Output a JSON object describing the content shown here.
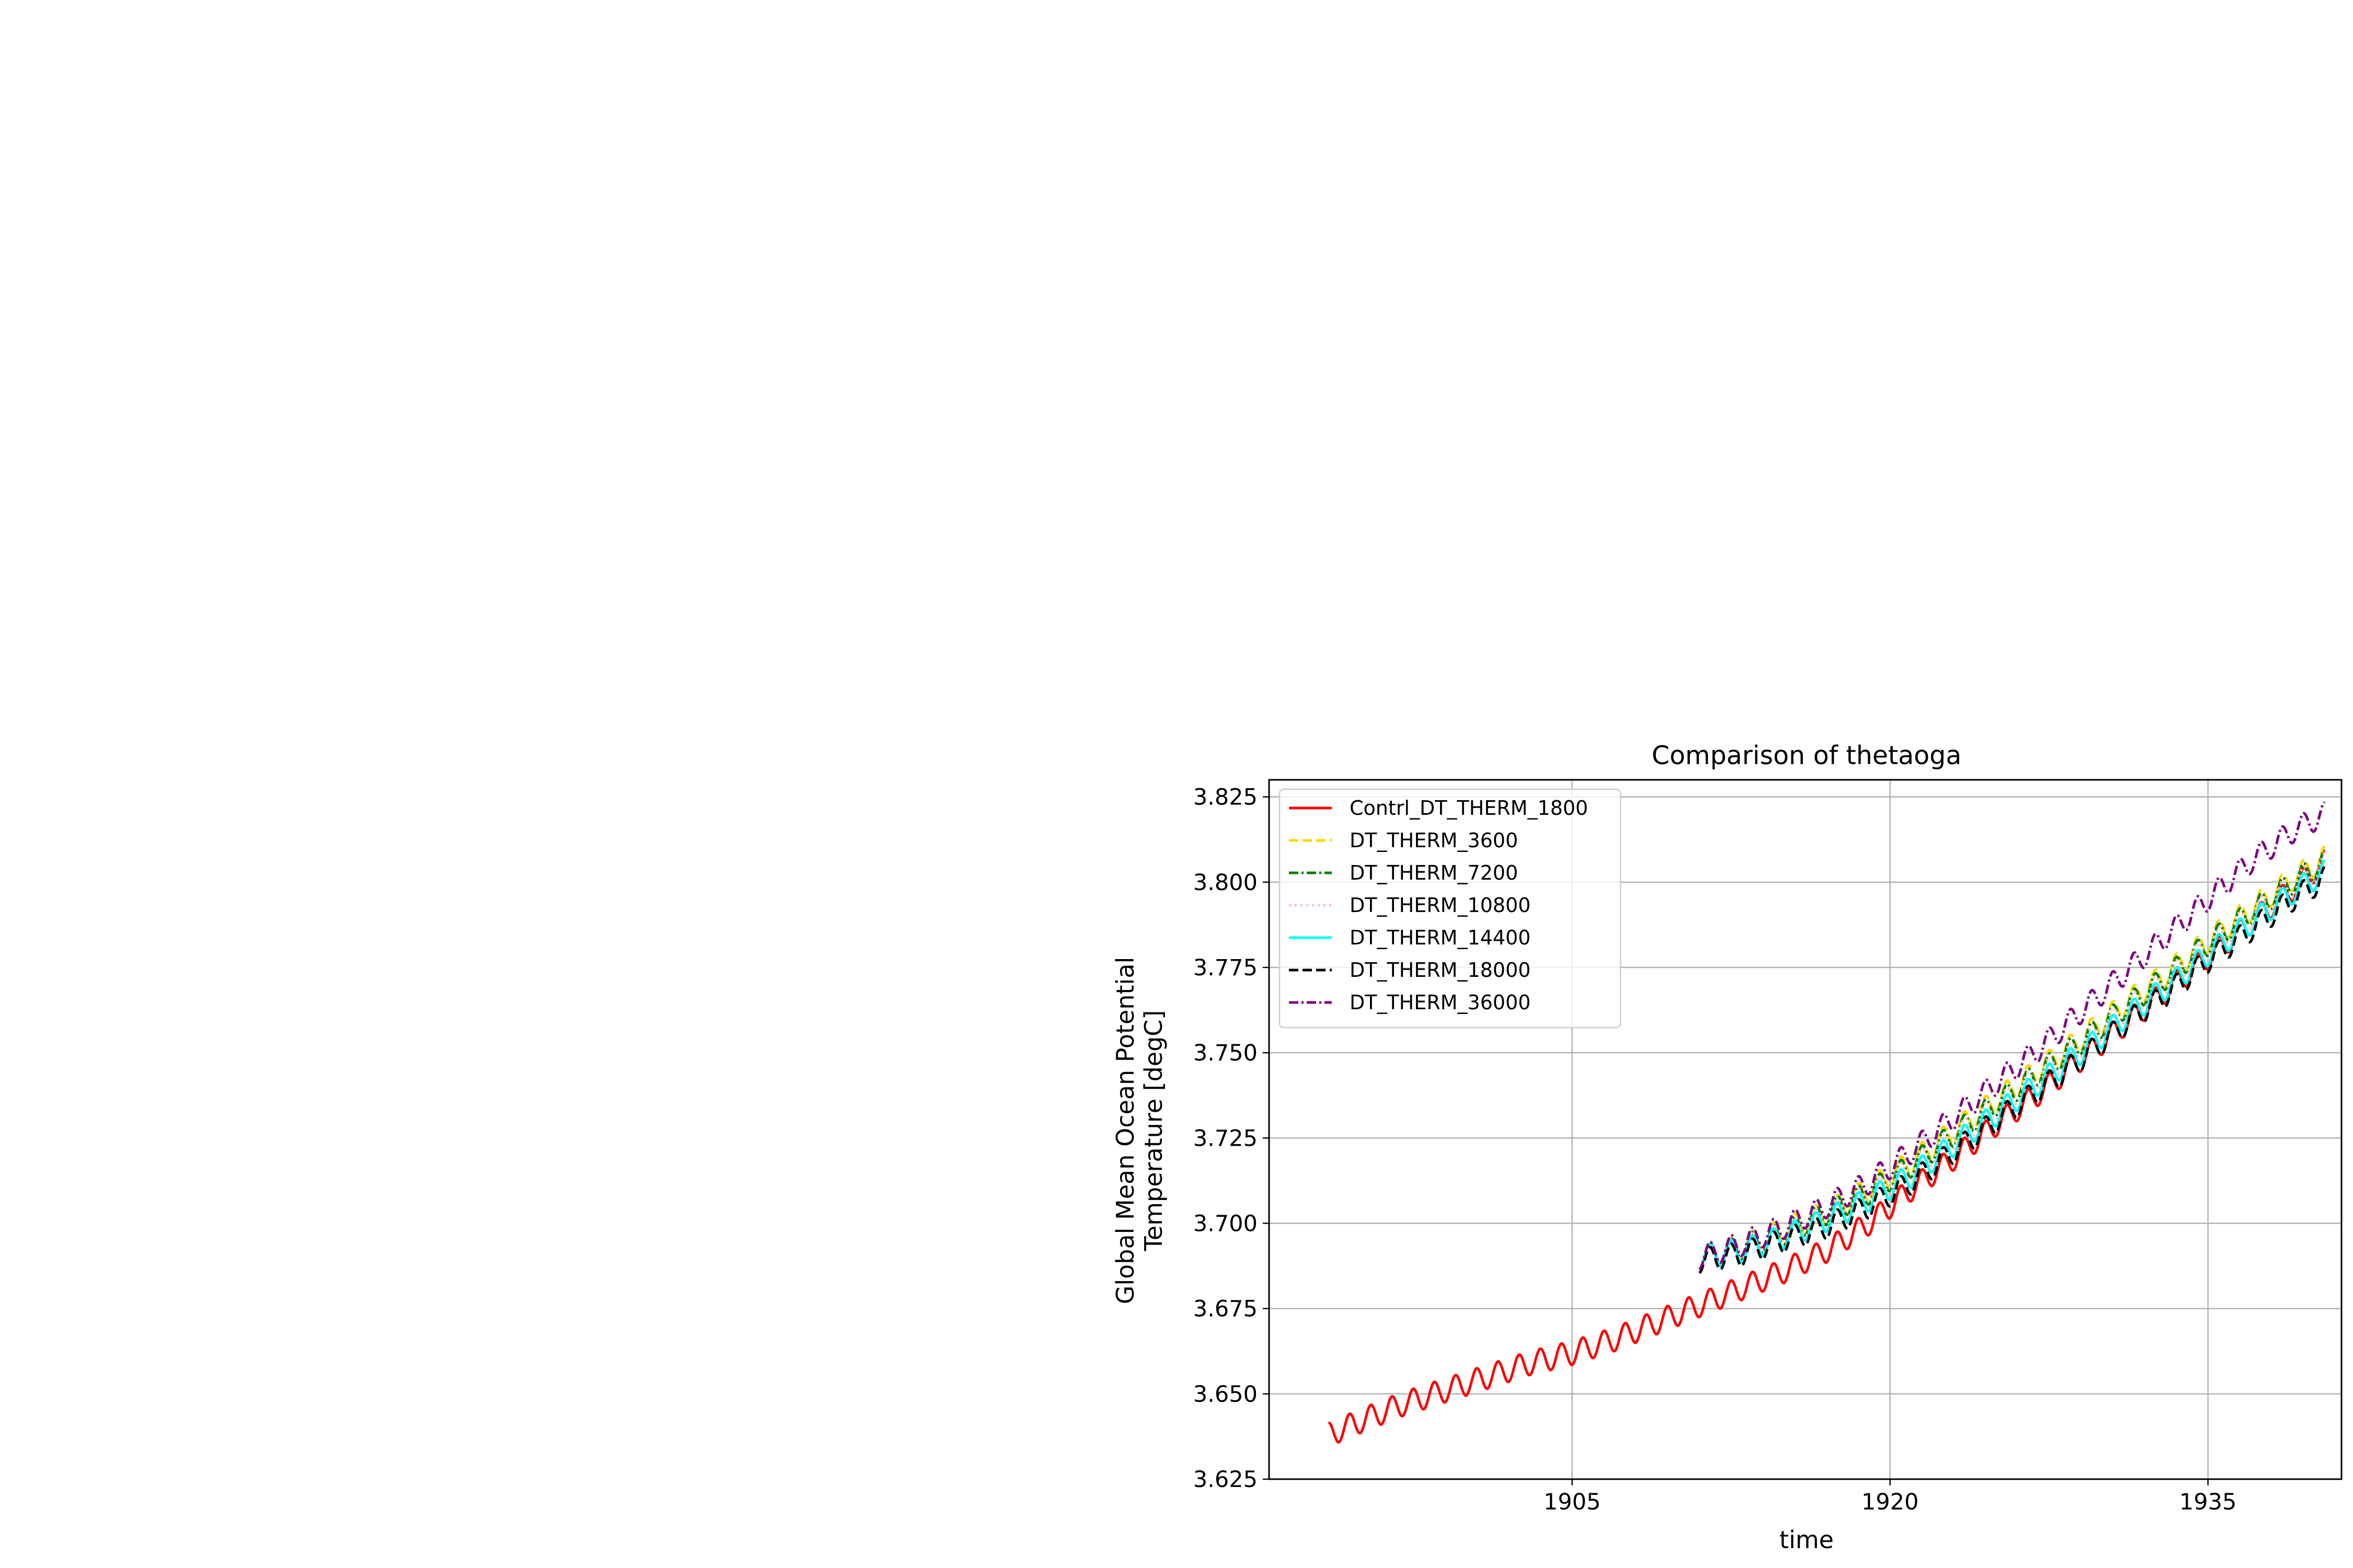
{
  "chart_data": {
    "type": "line",
    "title": "Comparison of thetaoga",
    "xlabel": "time",
    "ylabel_lines": [
      "Global Mean Ocean Potential",
      "Temperature [degC]"
    ],
    "xlim": [
      1890.7,
      1941.3
    ],
    "ylim": [
      3.625,
      3.83
    ],
    "x_ticks": [
      1905,
      1920,
      1935
    ],
    "x_tick_labels": [
      "1905",
      "1920",
      "1935"
    ],
    "y_ticks": [
      3.625,
      3.65,
      3.675,
      3.7,
      3.725,
      3.75,
      3.775,
      3.8,
      3.825
    ],
    "y_tick_labels": [
      "3.625",
      "3.650",
      "3.675",
      "3.700",
      "3.725",
      "3.750",
      "3.775",
      "3.800",
      "3.825"
    ],
    "grid": true,
    "legend_position": "upper-left",
    "series": [
      {
        "name": "Contrl_DT_THERM_1800",
        "color": "#ff0000",
        "style": "solid",
        "x": [
          1893.5,
          1895,
          1897,
          1899,
          1901,
          1903,
          1905,
          1907,
          1909,
          1911,
          1913,
          1915,
          1917,
          1919,
          1921,
          1923,
          1925,
          1927,
          1929,
          1931,
          1933,
          1935,
          1937,
          1939,
          1940.5
        ],
        "y": [
          3.638,
          3.642,
          3.647,
          3.651,
          3.655,
          3.659,
          3.662,
          3.666,
          3.671,
          3.676,
          3.681,
          3.686,
          3.692,
          3.7,
          3.71,
          3.719,
          3.729,
          3.738,
          3.748,
          3.758,
          3.768,
          3.778,
          3.788,
          3.798,
          3.806
        ]
      },
      {
        "name": "DT_THERM_3600",
        "color": "#ffd700",
        "style": "dashed",
        "x": [
          1911,
          1913,
          1915,
          1917,
          1919,
          1921,
          1923,
          1925,
          1927,
          1929,
          1931,
          1933,
          1935,
          1937,
          1939,
          1940.5
        ],
        "y": [
          3.69,
          3.693,
          3.698,
          3.703,
          3.71,
          3.718,
          3.727,
          3.736,
          3.745,
          3.754,
          3.764,
          3.773,
          3.783,
          3.792,
          3.801,
          3.807
        ]
      },
      {
        "name": "DT_THERM_7200",
        "color": "#008000",
        "style": "dashdot",
        "x": [
          1911,
          1913,
          1915,
          1917,
          1919,
          1921,
          1923,
          1925,
          1927,
          1929,
          1931,
          1933,
          1935,
          1937,
          1939,
          1940.5
        ],
        "y": [
          3.69,
          3.693,
          3.697,
          3.703,
          3.709,
          3.717,
          3.726,
          3.735,
          3.744,
          3.753,
          3.763,
          3.772,
          3.782,
          3.791,
          3.8,
          3.806
        ]
      },
      {
        "name": "DT_THERM_10800",
        "color": "#ffc0cb",
        "style": "dotted",
        "x": [
          1911,
          1913,
          1915,
          1917,
          1919,
          1921,
          1923,
          1925,
          1927,
          1929,
          1931,
          1933,
          1935,
          1937,
          1939,
          1940.5
        ],
        "y": [
          3.69,
          3.693,
          3.697,
          3.702,
          3.708,
          3.716,
          3.725,
          3.734,
          3.743,
          3.752,
          3.762,
          3.771,
          3.781,
          3.79,
          3.799,
          3.805
        ]
      },
      {
        "name": "DT_THERM_14400",
        "color": "#00ffff",
        "style": "solid",
        "x": [
          1911,
          1913,
          1915,
          1917,
          1919,
          1921,
          1923,
          1925,
          1927,
          1929,
          1931,
          1933,
          1935,
          1937,
          1939,
          1940.5
        ],
        "y": [
          3.69,
          3.692,
          3.696,
          3.701,
          3.707,
          3.714,
          3.723,
          3.732,
          3.741,
          3.75,
          3.76,
          3.769,
          3.779,
          3.788,
          3.797,
          3.803
        ]
      },
      {
        "name": "DT_THERM_18000",
        "color": "#000000",
        "style": "dashed",
        "x": [
          1911,
          1913,
          1915,
          1917,
          1919,
          1921,
          1923,
          1925,
          1927,
          1929,
          1931,
          1933,
          1935,
          1937,
          1939,
          1940.5
        ],
        "y": [
          3.689,
          3.691,
          3.695,
          3.699,
          3.705,
          3.712,
          3.721,
          3.73,
          3.739,
          3.748,
          3.758,
          3.767,
          3.777,
          3.786,
          3.795,
          3.801
        ]
      },
      {
        "name": "DT_THERM_36000",
        "color": "#800080",
        "style": "dashdot",
        "x": [
          1911,
          1913,
          1915,
          1917,
          1919,
          1921,
          1923,
          1925,
          1927,
          1929,
          1931,
          1933,
          1935,
          1937,
          1939,
          1940.5
        ],
        "y": [
          3.69,
          3.694,
          3.699,
          3.705,
          3.712,
          3.721,
          3.731,
          3.741,
          3.751,
          3.762,
          3.773,
          3.784,
          3.795,
          3.806,
          3.815,
          3.82
        ]
      }
    ]
  }
}
